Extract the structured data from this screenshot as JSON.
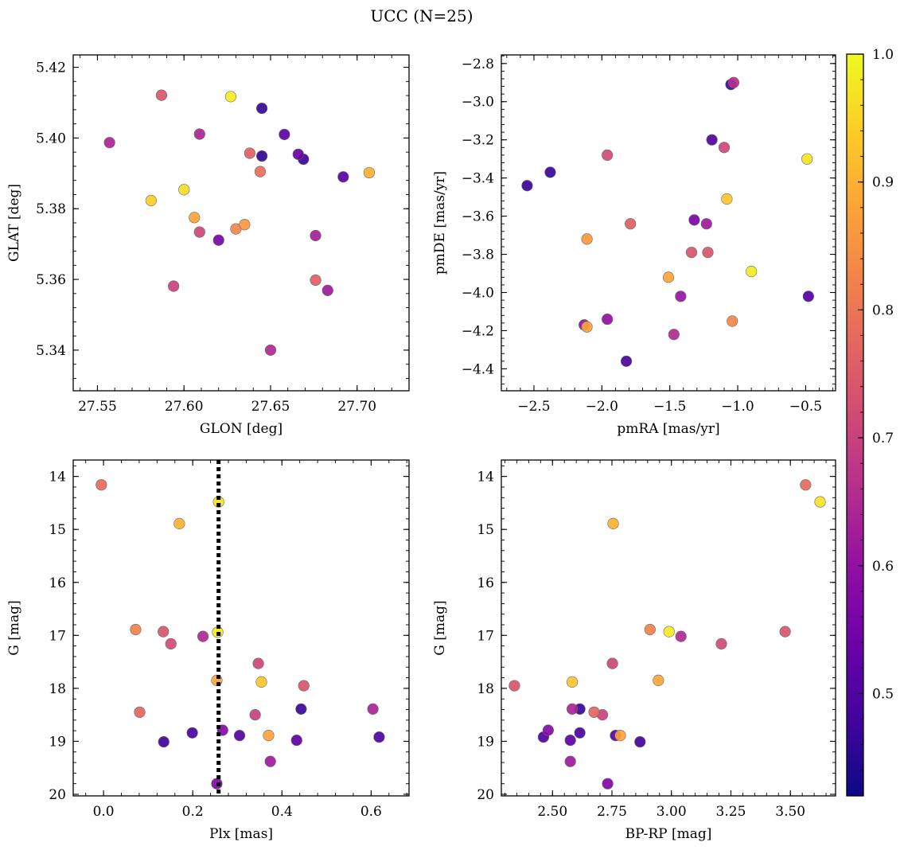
{
  "figure": {
    "title": "UCC (N=25)"
  },
  "colormap": {
    "name": "plasma",
    "min": 0.42,
    "max": 1.0,
    "ticks": [
      "0.5",
      "0.6",
      "0.7",
      "0.8",
      "0.9",
      "1.0"
    ],
    "stops": [
      "#0d0887",
      "#41049d",
      "#6a00a8",
      "#8f0da4",
      "#b12a90",
      "#cc4778",
      "#e16462",
      "#f2844b",
      "#fca636",
      "#fcce25",
      "#f0f921"
    ]
  },
  "chart_data": [
    {
      "type": "scatter",
      "id": "glon-glat",
      "title": "",
      "xlabel": "GLON [deg]",
      "ylabel": "GLAT [deg]",
      "xlim": [
        27.536,
        27.73
      ],
      "ylim": [
        5.3285,
        5.4235
      ],
      "xticks": [
        27.55,
        27.6,
        27.65,
        27.7
      ],
      "xtick_labels": [
        "27.55",
        "27.60",
        "27.65",
        "27.70"
      ],
      "yticks": [
        5.34,
        5.36,
        5.38,
        5.4,
        5.42
      ],
      "ytick_labels": [
        "5.34",
        "5.36",
        "5.38",
        "5.40",
        "5.42"
      ],
      "y_inverted": false,
      "points": [
        {
          "x": 27.587,
          "y": 5.4121,
          "c": 0.74
        },
        {
          "x": 27.627,
          "y": 5.4117,
          "c": 0.98
        },
        {
          "x": 27.645,
          "y": 5.4084,
          "c": 0.47
        },
        {
          "x": 27.557,
          "y": 5.3987,
          "c": 0.64
        },
        {
          "x": 27.609,
          "y": 5.4011,
          "c": 0.64
        },
        {
          "x": 27.658,
          "y": 5.401,
          "c": 0.52
        },
        {
          "x": 27.638,
          "y": 5.3957,
          "c": 0.76
        },
        {
          "x": 27.645,
          "y": 5.3949,
          "c": 0.46
        },
        {
          "x": 27.666,
          "y": 5.3954,
          "c": 0.54
        },
        {
          "x": 27.669,
          "y": 5.394,
          "c": 0.47
        },
        {
          "x": 27.644,
          "y": 5.3905,
          "c": 0.79
        },
        {
          "x": 27.692,
          "y": 5.389,
          "c": 0.51
        },
        {
          "x": 27.707,
          "y": 5.3902,
          "c": 0.9
        },
        {
          "x": 27.6,
          "y": 5.3854,
          "c": 0.96
        },
        {
          "x": 27.581,
          "y": 5.3823,
          "c": 0.94
        },
        {
          "x": 27.606,
          "y": 5.3775,
          "c": 0.88
        },
        {
          "x": 27.635,
          "y": 5.3755,
          "c": 0.86
        },
        {
          "x": 27.63,
          "y": 5.3743,
          "c": 0.83
        },
        {
          "x": 27.609,
          "y": 5.3734,
          "c": 0.71
        },
        {
          "x": 27.676,
          "y": 5.3724,
          "c": 0.63
        },
        {
          "x": 27.62,
          "y": 5.3711,
          "c": 0.56
        },
        {
          "x": 27.676,
          "y": 5.3598,
          "c": 0.76
        },
        {
          "x": 27.594,
          "y": 5.3581,
          "c": 0.7
        },
        {
          "x": 27.683,
          "y": 5.3569,
          "c": 0.62
        },
        {
          "x": 27.65,
          "y": 5.34,
          "c": 0.65
        }
      ]
    },
    {
      "type": "scatter",
      "id": "pmra-pmde",
      "title": "",
      "xlabel": "pmRA [mas/yr]",
      "ylabel": "pmDE [mas/yr]",
      "xlim": [
        -2.74,
        -0.28
      ],
      "ylim": [
        -4.515,
        -2.755
      ],
      "xticks": [
        -2.5,
        -2.0,
        -1.5,
        -1.0,
        -0.5
      ],
      "xtick_labels": [
        "−2.5",
        "−2.0",
        "−1.5",
        "−1.0",
        "−0.5"
      ],
      "yticks": [
        -4.4,
        -4.2,
        -4.0,
        -3.8,
        -3.6,
        -3.4,
        -3.2,
        -3.0,
        -2.8
      ],
      "ytick_labels": [
        "−4.4",
        "−4.2",
        "−4.0",
        "−3.8",
        "−3.6",
        "−3.4",
        "−3.2",
        "−3.0",
        "−2.8"
      ],
      "y_inverted": false,
      "points": [
        {
          "x": -1.05,
          "y": -2.91,
          "c": 0.47
        },
        {
          "x": -1.03,
          "y": -2.9,
          "c": 0.66
        },
        {
          "x": -1.19,
          "y": -3.2,
          "c": 0.5
        },
        {
          "x": -1.1,
          "y": -3.24,
          "c": 0.71
        },
        {
          "x": -1.96,
          "y": -3.28,
          "c": 0.72
        },
        {
          "x": -0.49,
          "y": -3.3,
          "c": 0.97
        },
        {
          "x": -2.38,
          "y": -3.37,
          "c": 0.47
        },
        {
          "x": -2.55,
          "y": -3.44,
          "c": 0.47
        },
        {
          "x": -1.08,
          "y": -3.51,
          "c": 0.93
        },
        {
          "x": -1.32,
          "y": -3.62,
          "c": 0.56
        },
        {
          "x": -1.23,
          "y": -3.64,
          "c": 0.62
        },
        {
          "x": -1.79,
          "y": -3.64,
          "c": 0.76
        },
        {
          "x": -2.11,
          "y": -3.72,
          "c": 0.86
        },
        {
          "x": -1.34,
          "y": -3.79,
          "c": 0.74
        },
        {
          "x": -1.22,
          "y": -3.79,
          "c": 0.74
        },
        {
          "x": -0.9,
          "y": -3.89,
          "c": 0.98
        },
        {
          "x": -1.51,
          "y": -3.92,
          "c": 0.88
        },
        {
          "x": -0.48,
          "y": -4.02,
          "c": 0.51
        },
        {
          "x": -1.42,
          "y": -4.02,
          "c": 0.61
        },
        {
          "x": -1.96,
          "y": -4.14,
          "c": 0.6
        },
        {
          "x": -1.04,
          "y": -4.15,
          "c": 0.83
        },
        {
          "x": -2.13,
          "y": -4.17,
          "c": 0.6
        },
        {
          "x": -2.11,
          "y": -4.18,
          "c": 0.88
        },
        {
          "x": -1.47,
          "y": -4.22,
          "c": 0.65
        },
        {
          "x": -1.82,
          "y": -4.36,
          "c": 0.49
        }
      ]
    },
    {
      "type": "scatter",
      "id": "plx-g",
      "title": "",
      "xlabel": "Plx [mas]",
      "ylabel": "G [mag]",
      "xlim": [
        -0.068,
        0.685
      ],
      "ylim": [
        13.69,
        20.03
      ],
      "xticks": [
        0.0,
        0.2,
        0.4,
        0.6
      ],
      "xtick_labels": [
        "0.0",
        "0.2",
        "0.4",
        "0.6"
      ],
      "yticks": [
        14,
        15,
        16,
        17,
        18,
        19,
        20
      ],
      "ytick_labels": [
        "14",
        "15",
        "16",
        "17",
        "18",
        "19",
        "20"
      ],
      "y_inverted": true,
      "vline": {
        "x": 0.258,
        "style": "dotted"
      },
      "points": [
        {
          "x": -0.005,
          "y": 14.16,
          "c": 0.78
        },
        {
          "x": 0.258,
          "y": 14.48,
          "c": 0.97
        },
        {
          "x": 0.17,
          "y": 14.89,
          "c": 0.9
        },
        {
          "x": 0.072,
          "y": 16.89,
          "c": 0.82
        },
        {
          "x": 0.134,
          "y": 16.93,
          "c": 0.74
        },
        {
          "x": 0.256,
          "y": 16.94,
          "c": 0.98
        },
        {
          "x": 0.223,
          "y": 17.02,
          "c": 0.65
        },
        {
          "x": 0.151,
          "y": 17.16,
          "c": 0.72
        },
        {
          "x": 0.347,
          "y": 17.53,
          "c": 0.71
        },
        {
          "x": 0.254,
          "y": 17.85,
          "c": 0.88
        },
        {
          "x": 0.354,
          "y": 17.88,
          "c": 0.93
        },
        {
          "x": 0.449,
          "y": 17.95,
          "c": 0.74
        },
        {
          "x": 0.081,
          "y": 18.45,
          "c": 0.77
        },
        {
          "x": 0.34,
          "y": 18.5,
          "c": 0.7
        },
        {
          "x": 0.443,
          "y": 18.39,
          "c": 0.47
        },
        {
          "x": 0.604,
          "y": 18.39,
          "c": 0.64
        },
        {
          "x": 0.267,
          "y": 18.79,
          "c": 0.58
        },
        {
          "x": 0.199,
          "y": 18.84,
          "c": 0.49
        },
        {
          "x": 0.305,
          "y": 18.89,
          "c": 0.51
        },
        {
          "x": 0.37,
          "y": 18.89,
          "c": 0.88
        },
        {
          "x": 0.618,
          "y": 18.92,
          "c": 0.5
        },
        {
          "x": 0.433,
          "y": 18.98,
          "c": 0.52
        },
        {
          "x": 0.135,
          "y": 19.01,
          "c": 0.48
        },
        {
          "x": 0.374,
          "y": 19.38,
          "c": 0.62
        },
        {
          "x": 0.254,
          "y": 19.8,
          "c": 0.57
        }
      ]
    },
    {
      "type": "scatter",
      "id": "bprp-g",
      "title": "",
      "xlabel": "BP-RP [mag]",
      "ylabel": "G [mag]",
      "xlim": [
        2.285,
        3.69
      ],
      "ylim": [
        13.69,
        20.03
      ],
      "xticks": [
        2.5,
        2.75,
        3.0,
        3.25,
        3.5
      ],
      "xtick_labels": [
        "2.50",
        "2.75",
        "3.00",
        "3.25",
        "3.50"
      ],
      "yticks": [
        14,
        15,
        16,
        17,
        18,
        19,
        20
      ],
      "ytick_labels": [
        "14",
        "15",
        "16",
        "17",
        "18",
        "19",
        "20"
      ],
      "y_inverted": true,
      "points": [
        {
          "x": 3.564,
          "y": 14.16,
          "c": 0.78
        },
        {
          "x": 3.625,
          "y": 14.48,
          "c": 0.97
        },
        {
          "x": 2.755,
          "y": 14.89,
          "c": 0.9
        },
        {
          "x": 2.91,
          "y": 16.89,
          "c": 0.82
        },
        {
          "x": 2.99,
          "y": 16.93,
          "c": 0.98
        },
        {
          "x": 3.478,
          "y": 16.93,
          "c": 0.74
        },
        {
          "x": 3.04,
          "y": 17.02,
          "c": 0.65
        },
        {
          "x": 3.21,
          "y": 17.16,
          "c": 0.72
        },
        {
          "x": 2.752,
          "y": 17.53,
          "c": 0.71
        },
        {
          "x": 2.583,
          "y": 17.88,
          "c": 0.93
        },
        {
          "x": 2.945,
          "y": 17.85,
          "c": 0.88
        },
        {
          "x": 2.34,
          "y": 17.95,
          "c": 0.74
        },
        {
          "x": 2.583,
          "y": 18.39,
          "c": 0.64
        },
        {
          "x": 2.615,
          "y": 18.39,
          "c": 0.47
        },
        {
          "x": 2.675,
          "y": 18.45,
          "c": 0.77
        },
        {
          "x": 2.71,
          "y": 18.5,
          "c": 0.7
        },
        {
          "x": 2.482,
          "y": 18.79,
          "c": 0.58
        },
        {
          "x": 2.615,
          "y": 18.84,
          "c": 0.49
        },
        {
          "x": 2.462,
          "y": 18.92,
          "c": 0.5
        },
        {
          "x": 2.765,
          "y": 18.89,
          "c": 0.51
        },
        {
          "x": 2.785,
          "y": 18.89,
          "c": 0.88
        },
        {
          "x": 2.575,
          "y": 18.98,
          "c": 0.52
        },
        {
          "x": 2.868,
          "y": 19.01,
          "c": 0.48
        },
        {
          "x": 2.575,
          "y": 19.38,
          "c": 0.62
        },
        {
          "x": 2.732,
          "y": 19.8,
          "c": 0.57
        }
      ]
    }
  ]
}
